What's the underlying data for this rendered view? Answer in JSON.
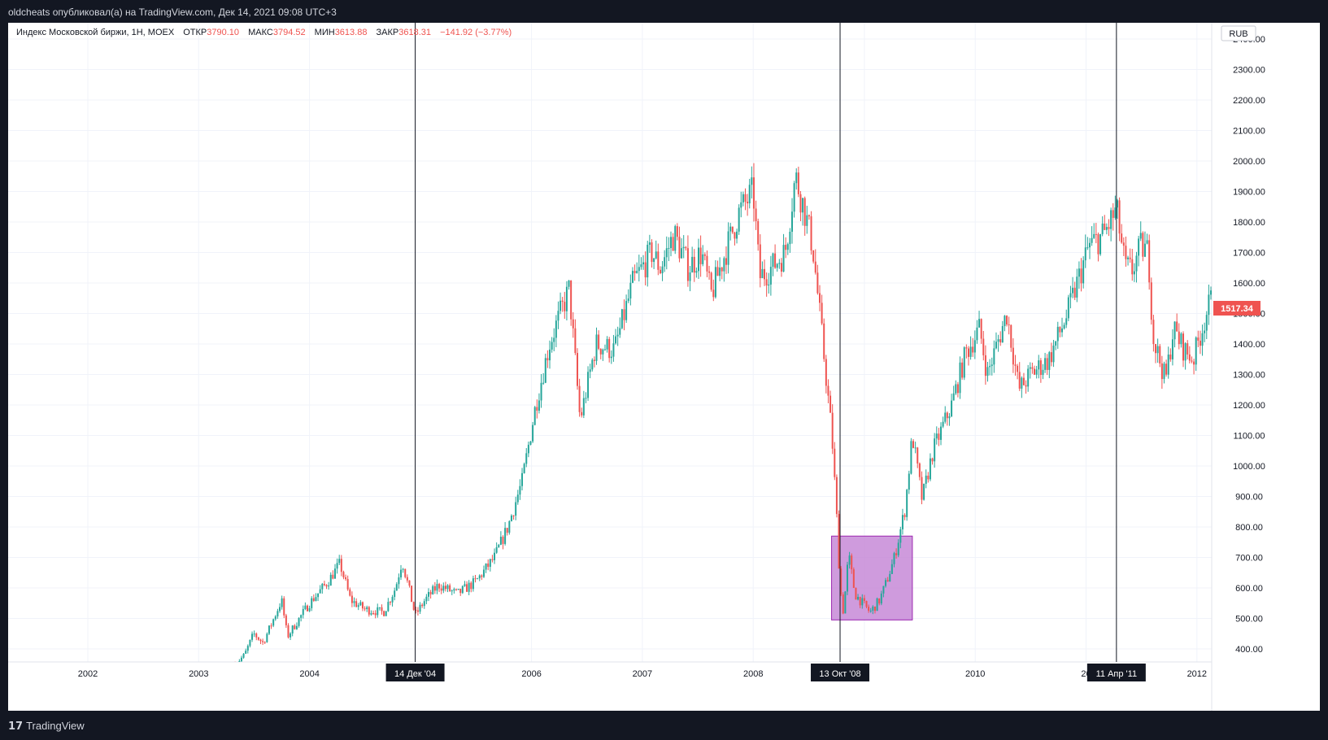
{
  "header": {
    "published_text": "oldcheats опубликовал(а) на TradingView.com, Дек 14, 2021 09:08 UTC+3"
  },
  "footer": {
    "logo_text": "TradingView"
  },
  "legend": {
    "symbol": "Индекс Московской биржи, 1Н, MOEX",
    "open_label": "ОТКР",
    "open_value": "3790.10",
    "high_label": "МАКС",
    "high_value": "3794.52",
    "low_label": "МИН",
    "low_value": "3613.88",
    "close_label": "ЗАКР",
    "close_value": "3618.31",
    "change": "−141.92 (−3.77%)"
  },
  "colors": {
    "up": "#26a69a",
    "down": "#ef5350",
    "background": "#ffffff",
    "frame": "#131722",
    "highlight": "#9c27b0"
  },
  "chart_data": {
    "type": "candlestick",
    "currency": "RUB",
    "ylim": [
      350,
      2450
    ],
    "y_ticks": [
      400,
      500,
      600,
      700,
      800,
      900,
      1000,
      1100,
      1200,
      1300,
      1400,
      1500,
      1600,
      1700,
      1800,
      1900,
      2000,
      2100,
      2200,
      2300,
      2400
    ],
    "x_ticks": [
      {
        "date": "2002-01-01",
        "label": "2002"
      },
      {
        "date": "2003-01-01",
        "label": "2003"
      },
      {
        "date": "2004-01-01",
        "label": "2004"
      },
      {
        "date": "2006-01-01",
        "label": "2006"
      },
      {
        "date": "2007-01-01",
        "label": "2007"
      },
      {
        "date": "2008-01-01",
        "label": "2008"
      },
      {
        "date": "2010-01-01",
        "label": "2010"
      },
      {
        "date": "2012-01-01",
        "label": "2012"
      }
    ],
    "partial_tick_labels": [
      {
        "date": "2009-01-01",
        "label": "09"
      },
      {
        "date": "2011-01-01",
        "label": "20"
      }
    ],
    "last_price": "1517.34",
    "vertical_lines": [
      {
        "date": "2004-12-14",
        "label": "14 Дек '04"
      },
      {
        "date": "2008-10-13",
        "label": "13 Окт '08"
      },
      {
        "date": "2011-04-11",
        "label": "11 Апр '11"
      }
    ],
    "highlight_box": {
      "start": "2008-09-15",
      "end": "2009-06-08",
      "low": 495,
      "high": 770
    },
    "series": [
      {
        "date": "2003-05-01",
        "close": 350
      },
      {
        "date": "2003-06-01",
        "close": 380
      },
      {
        "date": "2003-07-01",
        "close": 450
      },
      {
        "date": "2003-08-01",
        "close": 420
      },
      {
        "date": "2003-09-01",
        "close": 490
      },
      {
        "date": "2003-10-01",
        "close": 560
      },
      {
        "date": "2003-10-20",
        "close": 440
      },
      {
        "date": "2003-11-15",
        "close": 480
      },
      {
        "date": "2004-01-01",
        "close": 550
      },
      {
        "date": "2004-03-01",
        "close": 620
      },
      {
        "date": "2004-04-10",
        "close": 680
      },
      {
        "date": "2004-05-15",
        "close": 560
      },
      {
        "date": "2004-07-01",
        "close": 530
      },
      {
        "date": "2004-09-01",
        "close": 520
      },
      {
        "date": "2004-10-10",
        "close": 600
      },
      {
        "date": "2004-11-01",
        "close": 690
      },
      {
        "date": "2004-11-25",
        "close": 590
      },
      {
        "date": "2004-12-14",
        "close": 510
      },
      {
        "date": "2005-01-15",
        "close": 560
      },
      {
        "date": "2005-03-01",
        "close": 610
      },
      {
        "date": "2005-05-01",
        "close": 580
      },
      {
        "date": "2005-07-01",
        "close": 620
      },
      {
        "date": "2005-09-01",
        "close": 700
      },
      {
        "date": "2005-10-15",
        "close": 800
      },
      {
        "date": "2005-12-01",
        "close": 950
      },
      {
        "date": "2006-01-15",
        "close": 1200
      },
      {
        "date": "2006-03-01",
        "close": 1400
      },
      {
        "date": "2006-05-05",
        "close": 1580
      },
      {
        "date": "2006-06-10",
        "close": 1150
      },
      {
        "date": "2006-08-01",
        "close": 1400
      },
      {
        "date": "2006-10-01",
        "close": 1380
      },
      {
        "date": "2006-12-01",
        "close": 1600
      },
      {
        "date": "2007-02-01",
        "close": 1700
      },
      {
        "date": "2007-03-01",
        "close": 1650
      },
      {
        "date": "2007-04-15",
        "close": 1760
      },
      {
        "date": "2007-06-01",
        "close": 1650
      },
      {
        "date": "2007-07-15",
        "close": 1700
      },
      {
        "date": "2007-08-15",
        "close": 1560
      },
      {
        "date": "2007-10-01",
        "close": 1700
      },
      {
        "date": "2007-11-15",
        "close": 1830
      },
      {
        "date": "2008-01-01",
        "close": 1900
      },
      {
        "date": "2008-01-22",
        "close": 1620
      },
      {
        "date": "2008-03-01",
        "close": 1650
      },
      {
        "date": "2008-04-15",
        "close": 1700
      },
      {
        "date": "2008-05-19",
        "close": 1950
      },
      {
        "date": "2008-06-15",
        "close": 1850
      },
      {
        "date": "2008-07-15",
        "close": 1720
      },
      {
        "date": "2008-08-15",
        "close": 1420
      },
      {
        "date": "2008-09-16",
        "close": 1100
      },
      {
        "date": "2008-10-01",
        "close": 850
      },
      {
        "date": "2008-10-13",
        "close": 600
      },
      {
        "date": "2008-10-24",
        "close": 520
      },
      {
        "date": "2008-11-10",
        "close": 710
      },
      {
        "date": "2008-12-01",
        "close": 580
      },
      {
        "date": "2009-01-20",
        "close": 520
      },
      {
        "date": "2009-02-20",
        "close": 560
      },
      {
        "date": "2009-03-15",
        "close": 620
      },
      {
        "date": "2009-04-10",
        "close": 700
      },
      {
        "date": "2009-05-15",
        "close": 860
      },
      {
        "date": "2009-06-08",
        "close": 1100
      },
      {
        "date": "2009-07-10",
        "close": 890
      },
      {
        "date": "2009-08-15",
        "close": 1050
      },
      {
        "date": "2009-10-15",
        "close": 1200
      },
      {
        "date": "2009-12-01",
        "close": 1370
      },
      {
        "date": "2010-01-15",
        "close": 1450
      },
      {
        "date": "2010-02-10",
        "close": 1300
      },
      {
        "date": "2010-04-15",
        "close": 1500
      },
      {
        "date": "2010-05-25",
        "close": 1250
      },
      {
        "date": "2010-07-01",
        "close": 1300
      },
      {
        "date": "2010-09-01",
        "close": 1350
      },
      {
        "date": "2010-11-01",
        "close": 1500
      },
      {
        "date": "2011-01-10",
        "close": 1720
      },
      {
        "date": "2011-03-01",
        "close": 1760
      },
      {
        "date": "2011-04-11",
        "close": 1840
      },
      {
        "date": "2011-05-10",
        "close": 1650
      },
      {
        "date": "2011-06-01",
        "close": 1640
      },
      {
        "date": "2011-07-01",
        "close": 1720
      },
      {
        "date": "2011-07-25",
        "close": 1700
      },
      {
        "date": "2011-08-10",
        "close": 1420
      },
      {
        "date": "2011-09-20",
        "close": 1280
      },
      {
        "date": "2011-10-15",
        "close": 1450
      },
      {
        "date": "2011-11-20",
        "close": 1380
      },
      {
        "date": "2011-12-20",
        "close": 1350
      },
      {
        "date": "2012-02-01",
        "close": 1500
      },
      {
        "date": "2012-03-10",
        "close": 1600
      },
      {
        "date": "2012-04-01",
        "close": 1517
      }
    ]
  }
}
